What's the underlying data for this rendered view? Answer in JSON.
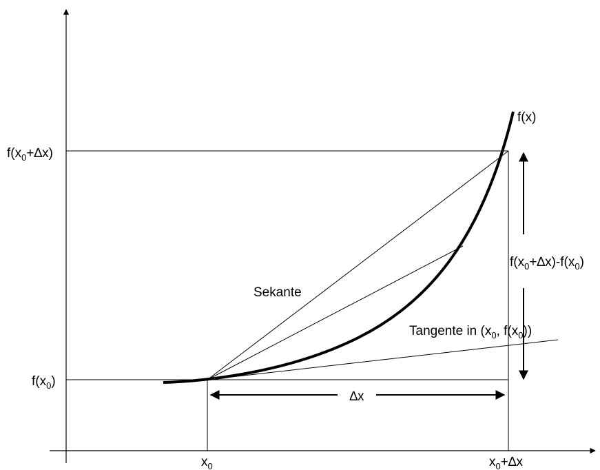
{
  "labels": {
    "y_top": {
      "base": "f(x",
      "sub": "0",
      "tail": "+∆x)"
    },
    "y_bottom": {
      "base": "f(x",
      "sub": "0",
      "tail": ")"
    },
    "x_left": {
      "base": "x",
      "sub": "0"
    },
    "x_right": {
      "base": "x",
      "sub": "0",
      "tail": "+∆x"
    },
    "curve": "f(x)",
    "secant": "Sekante",
    "tangent": {
      "prefix": "Tangente in (x",
      "sub1": "0",
      "mid": ", f(x",
      "sub2": "0",
      "suffix": "))"
    },
    "delta_x": "∆x",
    "delta_y": {
      "p1": "f(x",
      "s1": "0",
      "p2": "+∆x)-f(x",
      "s2": "0",
      "p3": ")"
    }
  },
  "colors": {
    "ink": "#000000",
    "background": "#ffffff"
  }
}
